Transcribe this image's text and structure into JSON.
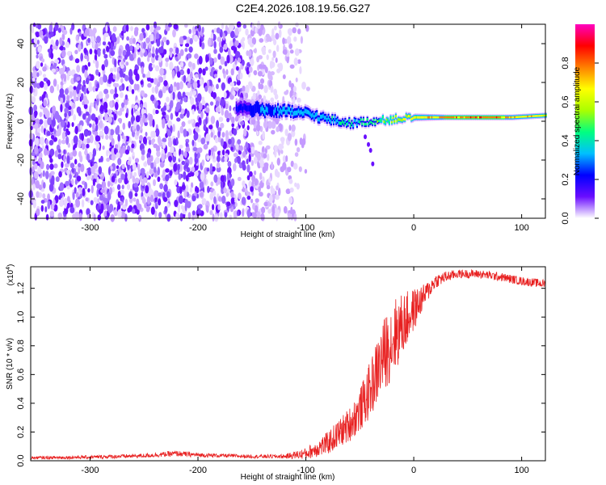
{
  "title": "C2E4.2026.108.19.56.G27",
  "colors": {
    "line": "#e82020",
    "background": "#ffffff",
    "axis": "#000000",
    "colormap": [
      "#ffffff",
      "#cc99ff",
      "#6600ff",
      "#0000ff",
      "#00bfff",
      "#00ff80",
      "#ffff00",
      "#ff8000",
      "#ff0000",
      "#ff00c0"
    ]
  },
  "chart_data": [
    {
      "type": "heatmap",
      "name": "spectrogram",
      "xlabel": "Height of straight line (km)",
      "ylabel": "Frequency (Hz)",
      "xlim": [
        -355,
        122
      ],
      "ylim": [
        -50,
        50
      ],
      "xticks": [
        -300,
        -200,
        -100,
        0,
        100
      ],
      "yticks": [
        -40,
        -20,
        0,
        20,
        40
      ],
      "signal_band": {
        "x": [
          -165,
          -120,
          -100,
          -80,
          -60,
          -40,
          -20,
          0,
          30,
          60,
          90,
          122
        ],
        "center_hz": [
          7,
          5,
          4,
          1,
          -1,
          0,
          1,
          2,
          2,
          2,
          2,
          3
        ],
        "width_hz": [
          10,
          8,
          7,
          6,
          5,
          4,
          4,
          4,
          3,
          3,
          3,
          3
        ],
        "amplitude": [
          0.35,
          0.4,
          0.45,
          0.5,
          0.55,
          0.6,
          0.7,
          0.8,
          0.92,
          0.95,
          0.9,
          0.8
        ]
      },
      "noise_region_x": [
        -355,
        -120
      ]
    },
    {
      "type": "line",
      "name": "snr",
      "xlabel": "Height of straight line (km)",
      "ylabel": "SNR (10 * v/v)",
      "multiplier_label": "(x10",
      "multiplier_exp": "4",
      "xlim": [
        -355,
        122
      ],
      "ylim": [
        0,
        1.35
      ],
      "xticks": [
        -300,
        -200,
        -100,
        0,
        100
      ],
      "yticks": [
        0.0,
        0.2,
        0.4,
        0.6,
        0.8,
        1.0,
        1.2
      ],
      "ytick_labels": [
        "0.0",
        "0.2",
        "0.4",
        "0.6",
        "0.8",
        "1.0",
        "1.2"
      ],
      "envelope": {
        "x": [
          -355,
          -300,
          -250,
          -220,
          -200,
          -150,
          -120,
          -100,
          -80,
          -60,
          -50,
          -40,
          -30,
          -20,
          -10,
          0,
          10,
          20,
          30,
          40,
          60,
          80,
          100,
          122
        ],
        "mean": [
          0.02,
          0.025,
          0.035,
          0.05,
          0.04,
          0.03,
          0.03,
          0.05,
          0.12,
          0.25,
          0.35,
          0.5,
          0.7,
          0.85,
          0.95,
          1.05,
          1.15,
          1.25,
          1.28,
          1.3,
          1.3,
          1.28,
          1.25,
          1.23
        ],
        "noise": [
          0.01,
          0.012,
          0.015,
          0.02,
          0.015,
          0.012,
          0.015,
          0.04,
          0.08,
          0.12,
          0.15,
          0.2,
          0.25,
          0.28,
          0.22,
          0.15,
          0.08,
          0.05,
          0.04,
          0.03,
          0.03,
          0.03,
          0.03,
          0.03
        ]
      }
    }
  ],
  "colorbar": {
    "label": "Normalized spectral amplitude",
    "range": [
      0,
      1
    ],
    "ticks": [
      0.0,
      0.2,
      0.4,
      0.6,
      0.8
    ],
    "tick_labels": [
      "0.0",
      "0.2",
      "0.4",
      "0.6",
      "0.8"
    ]
  }
}
